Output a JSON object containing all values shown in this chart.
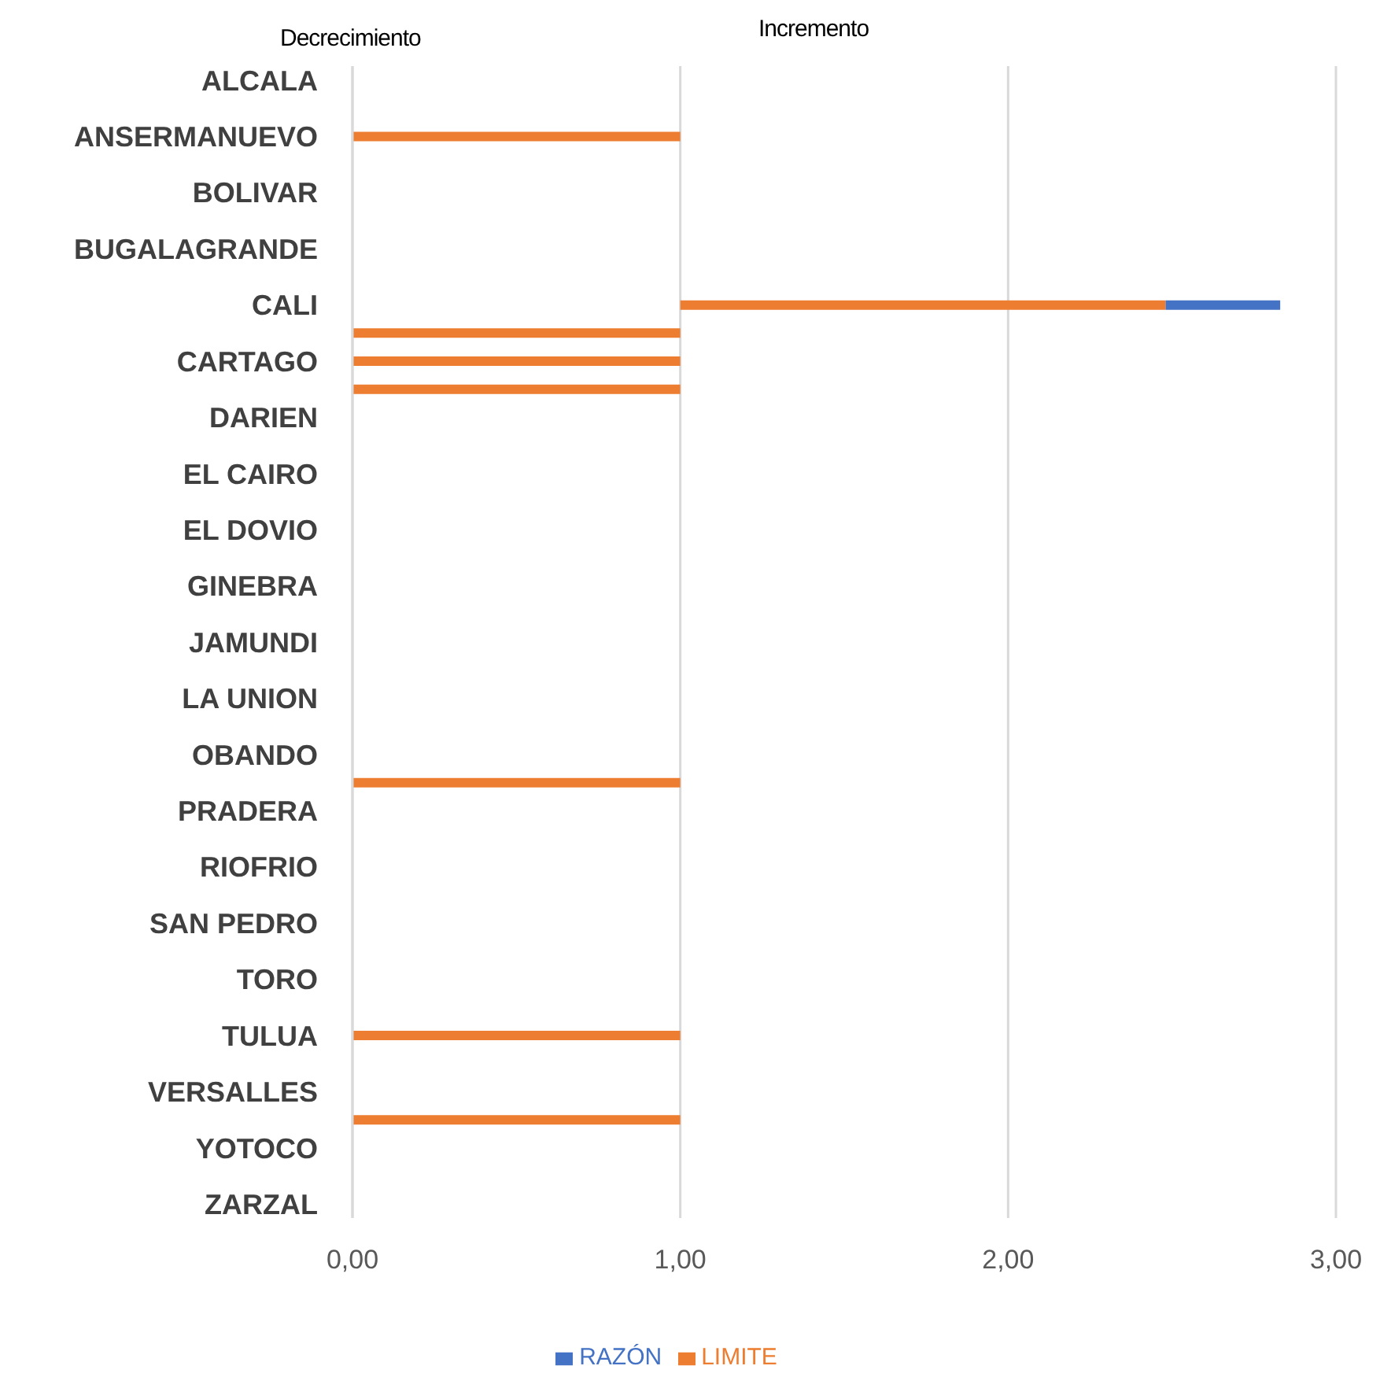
{
  "chart_data": {
    "type": "bar",
    "orientation": "horizontal",
    "categories": [
      "ALCALA",
      null,
      "ANSERMANUEVO",
      null,
      "BOLIVAR",
      null,
      "BUGALAGRANDE",
      null,
      "CALI",
      null,
      "CARTAGO",
      null,
      "DARIEN",
      null,
      "EL CAIRO",
      null,
      "EL DOVIO",
      null,
      "GINEBRA",
      null,
      "JAMUNDI",
      null,
      "LA UNION",
      null,
      "OBANDO",
      null,
      "PRADERA",
      null,
      "RIOFRIO",
      null,
      "SAN PEDRO",
      null,
      "TORO",
      null,
      "TULUA",
      null,
      "VERSALLES",
      null,
      "YOTOCO",
      null,
      "ZARZAL"
    ],
    "series": [
      {
        "name": "RAZÓN",
        "color": "#4472c4",
        "base": [
          null,
          null,
          null,
          null,
          null,
          null,
          null,
          null,
          2.48,
          null,
          null,
          null,
          null,
          null,
          null,
          null,
          null,
          null,
          null,
          null,
          null,
          null,
          null,
          null,
          null,
          null,
          null,
          null,
          null,
          null,
          null,
          null,
          null,
          null,
          null,
          null,
          null,
          null,
          null,
          null,
          null
        ],
        "values": [
          null,
          null,
          null,
          null,
          null,
          null,
          null,
          null,
          0.35,
          null,
          null,
          null,
          null,
          null,
          null,
          null,
          null,
          null,
          null,
          null,
          null,
          null,
          null,
          null,
          null,
          null,
          null,
          null,
          null,
          null,
          null,
          null,
          null,
          null,
          null,
          null,
          null,
          null,
          null,
          null,
          null
        ]
      },
      {
        "name": "LIMITE",
        "color": "#ed7d31",
        "base": [
          null,
          null,
          0,
          null,
          null,
          null,
          null,
          null,
          1,
          0,
          0,
          0,
          null,
          null,
          null,
          null,
          null,
          null,
          null,
          null,
          null,
          null,
          null,
          null,
          null,
          0,
          null,
          null,
          null,
          null,
          null,
          null,
          null,
          null,
          0,
          null,
          null,
          0,
          null,
          null,
          null
        ],
        "values": [
          null,
          null,
          1,
          null,
          null,
          null,
          null,
          null,
          1.48,
          1,
          1,
          1,
          null,
          null,
          null,
          null,
          null,
          null,
          null,
          null,
          null,
          null,
          null,
          null,
          null,
          1,
          null,
          null,
          null,
          null,
          null,
          null,
          null,
          null,
          1,
          null,
          null,
          1,
          null,
          null,
          null
        ]
      }
    ],
    "xlim": [
      0,
      3
    ],
    "xticks": [
      {
        "value": 0,
        "label": "0,00"
      },
      {
        "value": 1,
        "label": "1,00"
      },
      {
        "value": 2,
        "label": "2,00"
      },
      {
        "value": 3,
        "label": "3,00"
      }
    ],
    "grid": "x",
    "legend": "bottom",
    "annotations": [
      "Decrecimiento",
      "Incremento"
    ]
  }
}
